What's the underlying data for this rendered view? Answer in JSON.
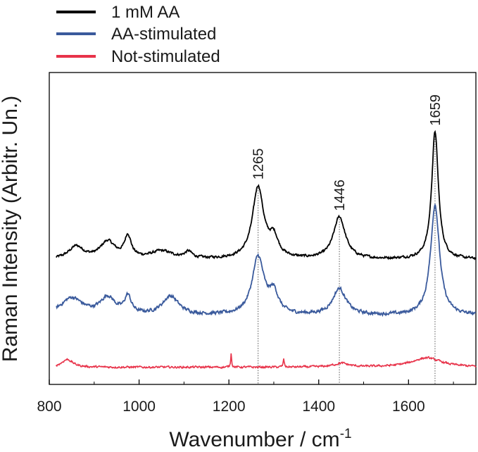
{
  "chart_data": {
    "type": "line",
    "title": "",
    "xlabel": "Wavenumber / cm",
    "xlabel_superscript": "-1",
    "ylabel": "Raman Intensity (Arbitr. Un.)",
    "xlim": [
      800,
      1750
    ],
    "ylim": [
      0,
      10
    ],
    "x_ticks": [
      800,
      1000,
      1200,
      1400,
      1600
    ],
    "grid": false,
    "legend": {
      "position": "top-left-outside",
      "entries": [
        {
          "label": "1 mM AA",
          "color": "#000000"
        },
        {
          "label": "AA-stimulated",
          "color": "#3a5a9c"
        },
        {
          "label": "Not-stimulated",
          "color": "#e8334a"
        }
      ]
    },
    "peak_markers": [
      {
        "x": 1265,
        "label": "1265"
      },
      {
        "x": 1446,
        "label": "1446"
      },
      {
        "x": 1659,
        "label": "1659"
      }
    ],
    "series": [
      {
        "name": "1 mM AA",
        "color": "#000000",
        "baseline": 4.0,
        "noise": 0.06,
        "peaks": [
          {
            "x": 860,
            "h": 0.4,
            "w": 20
          },
          {
            "x": 930,
            "h": 0.55,
            "w": 20
          },
          {
            "x": 975,
            "h": 0.7,
            "w": 9
          },
          {
            "x": 1050,
            "h": 0.25,
            "w": 30
          },
          {
            "x": 1110,
            "h": 0.2,
            "w": 10
          },
          {
            "x": 1265,
            "h": 2.3,
            "w": 15
          },
          {
            "x": 1300,
            "h": 0.6,
            "w": 12
          },
          {
            "x": 1446,
            "h": 1.35,
            "w": 16
          },
          {
            "x": 1659,
            "h": 4.1,
            "w": 9
          }
        ]
      },
      {
        "name": "AA-stimulated",
        "color": "#3a5a9c",
        "baseline": 2.2,
        "noise": 0.08,
        "peaks": [
          {
            "x": 850,
            "h": 0.55,
            "w": 30
          },
          {
            "x": 930,
            "h": 0.55,
            "w": 20
          },
          {
            "x": 975,
            "h": 0.55,
            "w": 9
          },
          {
            "x": 1070,
            "h": 0.6,
            "w": 22
          },
          {
            "x": 1265,
            "h": 1.85,
            "w": 16
          },
          {
            "x": 1300,
            "h": 0.65,
            "w": 12
          },
          {
            "x": 1446,
            "h": 0.85,
            "w": 18
          },
          {
            "x": 1659,
            "h": 3.55,
            "w": 12
          }
        ]
      },
      {
        "name": "Not-stimulated",
        "color": "#e8334a",
        "baseline": 0.55,
        "noise": 0.05,
        "peaks": [
          {
            "x": 840,
            "h": 0.25,
            "w": 15
          },
          {
            "x": 1205,
            "h": 0.45,
            "w": 1.3
          },
          {
            "x": 1322,
            "h": 0.25,
            "w": 1.5
          },
          {
            "x": 1450,
            "h": 0.12,
            "w": 20
          },
          {
            "x": 1640,
            "h": 0.3,
            "w": 40
          }
        ]
      }
    ]
  }
}
